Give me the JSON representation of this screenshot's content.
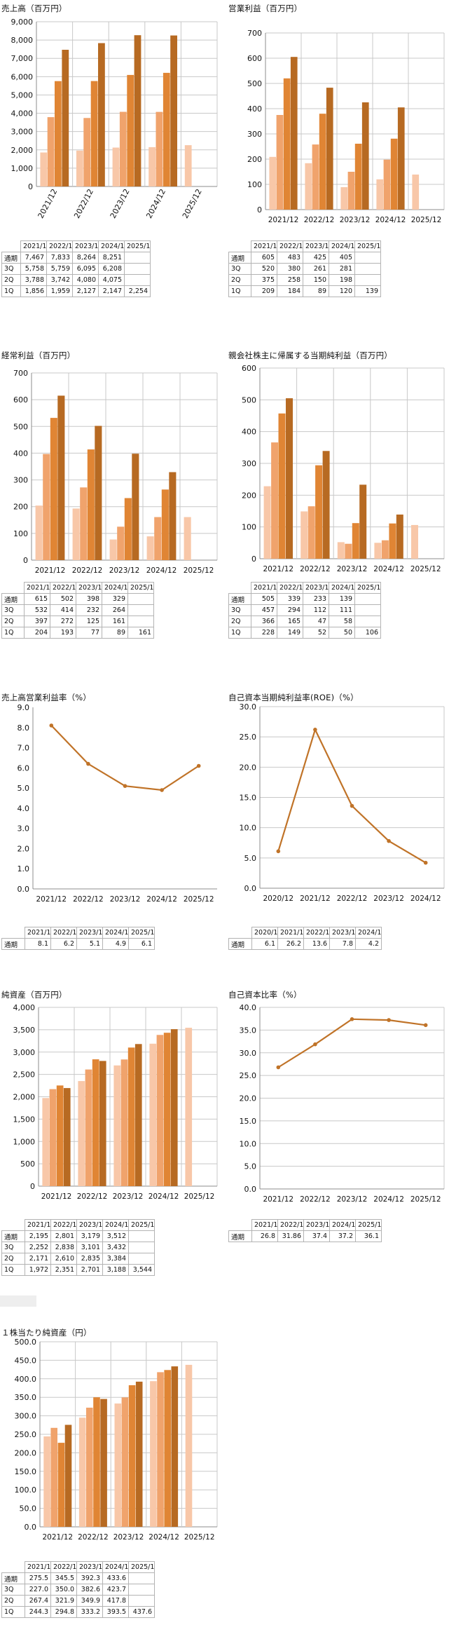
{
  "colors": {
    "q1": "#f8c7a8",
    "q2": "#f0a36c",
    "q3": "#e08534",
    "full": "#b76a22",
    "line": "#c07328",
    "grid": "#c8c8c8",
    "axis": "#8c8c8c"
  },
  "row_labels": [
    "通期",
    "3Q",
    "2Q",
    "1Q"
  ],
  "chart_data": [
    {
      "id": "sales",
      "type": "bar",
      "title": "売上高（百万円）",
      "categories": [
        "2021/12",
        "2022/12",
        "2023/12",
        "2024/12",
        "2025/12"
      ],
      "ylim": [
        0,
        9000
      ],
      "yticks": [
        "0",
        "1,000",
        "2,000",
        "3,000",
        "4,000",
        "5,000",
        "6,000",
        "7,000",
        "8,000",
        "9,000"
      ],
      "rotate_categories": true,
      "grid": true,
      "series": [
        {
          "key": "q1",
          "values": [
            1856,
            1959,
            2127,
            2147,
            2254
          ]
        },
        {
          "key": "q2",
          "values": [
            3788,
            3742,
            4080,
            4075,
            null
          ]
        },
        {
          "key": "q3",
          "values": [
            5758,
            5759,
            6095,
            6208,
            null
          ]
        },
        {
          "key": "full",
          "values": [
            7467,
            7833,
            8264,
            8251,
            null
          ]
        }
      ],
      "table": [
        [
          "7,467",
          "7,833",
          "8,264",
          "8,251",
          ""
        ],
        [
          "5,758",
          "5,759",
          "6,095",
          "6,208",
          ""
        ],
        [
          "3,788",
          "3,742",
          "4,080",
          "4,075",
          ""
        ],
        [
          "1,856",
          "1,959",
          "2,127",
          "2,147",
          "2,254"
        ]
      ]
    },
    {
      "id": "op",
      "type": "bar",
      "title": "営業利益（百万円）",
      "categories": [
        "2021/12",
        "2022/12",
        "2023/12",
        "2024/12",
        "2025/12"
      ],
      "ylim": [
        0,
        700
      ],
      "yticks": [
        "0",
        "100",
        "200",
        "300",
        "400",
        "500",
        "600",
        "700"
      ],
      "grid": true,
      "series": [
        {
          "key": "q1",
          "values": [
            209,
            184,
            89,
            120,
            139
          ]
        },
        {
          "key": "q2",
          "values": [
            375,
            258,
            150,
            198,
            null
          ]
        },
        {
          "key": "q3",
          "values": [
            520,
            380,
            261,
            281,
            null
          ]
        },
        {
          "key": "full",
          "values": [
            605,
            483,
            425,
            405,
            null
          ]
        }
      ],
      "table": [
        [
          "605",
          "483",
          "425",
          "405",
          ""
        ],
        [
          "520",
          "380",
          "261",
          "281",
          ""
        ],
        [
          "375",
          "258",
          "150",
          "198",
          ""
        ],
        [
          "209",
          "184",
          "89",
          "120",
          "139"
        ]
      ]
    },
    {
      "id": "ord",
      "type": "bar",
      "title": "経常利益（百万円）",
      "categories": [
        "2021/12",
        "2022/12",
        "2023/12",
        "2024/12",
        "2025/12"
      ],
      "ylim": [
        0,
        700
      ],
      "yticks": [
        "0",
        "100",
        "200",
        "300",
        "400",
        "500",
        "600",
        "700"
      ],
      "grid": true,
      "series": [
        {
          "key": "q1",
          "values": [
            204,
            193,
            77,
            89,
            161
          ]
        },
        {
          "key": "q2",
          "values": [
            397,
            272,
            125,
            161,
            null
          ]
        },
        {
          "key": "q3",
          "values": [
            532,
            414,
            232,
            264,
            null
          ]
        },
        {
          "key": "full",
          "values": [
            615,
            502,
            398,
            329,
            null
          ]
        }
      ],
      "table": [
        [
          "615",
          "502",
          "398",
          "329",
          ""
        ],
        [
          "532",
          "414",
          "232",
          "264",
          ""
        ],
        [
          "397",
          "272",
          "125",
          "161",
          ""
        ],
        [
          "204",
          "193",
          "77",
          "89",
          "161"
        ]
      ]
    },
    {
      "id": "net",
      "type": "bar",
      "title": "親会社株主に帰属する当期純利益（百万円）",
      "categories": [
        "2021/12",
        "2022/12",
        "2023/12",
        "2024/12",
        "2025/12"
      ],
      "ylim": [
        0,
        600
      ],
      "yticks": [
        "0",
        "100",
        "200",
        "300",
        "400",
        "500",
        "600"
      ],
      "grid": true,
      "series": [
        {
          "key": "q1",
          "values": [
            228,
            149,
            52,
            50,
            106
          ]
        },
        {
          "key": "q2",
          "values": [
            366,
            165,
            47,
            58,
            null
          ]
        },
        {
          "key": "q3",
          "values": [
            457,
            294,
            112,
            111,
            null
          ]
        },
        {
          "key": "full",
          "values": [
            505,
            339,
            233,
            139,
            null
          ]
        }
      ],
      "table": [
        [
          "505",
          "339",
          "233",
          "139",
          ""
        ],
        [
          "457",
          "294",
          "112",
          "111",
          ""
        ],
        [
          "366",
          "165",
          "47",
          "58",
          ""
        ],
        [
          "228",
          "149",
          "52",
          "50",
          "106"
        ]
      ]
    },
    {
      "id": "opm",
      "type": "line",
      "title": "売上高営業利益率（%）",
      "categories": [
        "2021/12",
        "2022/12",
        "2023/12",
        "2024/12",
        "2025/12"
      ],
      "ylim": [
        0,
        9
      ],
      "yticks": [
        "0.0",
        "1.0",
        "2.0",
        "3.0",
        "4.0",
        "5.0",
        "6.0",
        "7.0",
        "8.0",
        "9.0"
      ],
      "grid": false,
      "series": [
        {
          "key": "line",
          "values": [
            8.1,
            6.2,
            5.1,
            4.9,
            6.1
          ]
        }
      ],
      "table": [
        [
          "8.1",
          "6.2",
          "5.1",
          "4.9",
          "6.1"
        ]
      ]
    },
    {
      "id": "roe",
      "type": "line",
      "title": "自己資本当期純利益率(ROE)（%）",
      "categories": [
        "2020/12",
        "2021/12",
        "2022/12",
        "2023/12",
        "2024/12"
      ],
      "ylim": [
        0,
        30
      ],
      "yticks": [
        "0.0",
        "5.0",
        "10.0",
        "15.0",
        "20.0",
        "25.0",
        "30.0"
      ],
      "grid": true,
      "series": [
        {
          "key": "line",
          "values": [
            6.1,
            26.2,
            13.6,
            7.8,
            4.2
          ]
        }
      ],
      "table": [
        [
          "6.1",
          "26.2",
          "13.6",
          "7.8",
          "4.2"
        ]
      ]
    },
    {
      "id": "equity",
      "type": "bar",
      "title": "純資産（百万円）",
      "categories": [
        "2021/12",
        "2022/12",
        "2023/12",
        "2024/12",
        "2025/12"
      ],
      "ylim": [
        0,
        4000
      ],
      "yticks": [
        "0",
        "500",
        "1,000",
        "1,500",
        "2,000",
        "2,500",
        "3,000",
        "3,500",
        "4,000"
      ],
      "grid": true,
      "series": [
        {
          "key": "q1",
          "values": [
            1972,
            2351,
            2701,
            3188,
            3544
          ]
        },
        {
          "key": "q2",
          "values": [
            2171,
            2610,
            2835,
            3384,
            null
          ]
        },
        {
          "key": "q3",
          "values": [
            2252,
            2838,
            3101,
            3432,
            null
          ]
        },
        {
          "key": "full",
          "values": [
            2195,
            2801,
            3179,
            3512,
            null
          ]
        }
      ],
      "table": [
        [
          "2,195",
          "2,801",
          "3,179",
          "3,512",
          ""
        ],
        [
          "2,252",
          "2,838",
          "3,101",
          "3,432",
          ""
        ],
        [
          "2,171",
          "2,610",
          "2,835",
          "3,384",
          ""
        ],
        [
          "1,972",
          "2,351",
          "2,701",
          "3,188",
          "3,544"
        ]
      ]
    },
    {
      "id": "ratio",
      "type": "line",
      "title": "自己資本比率（%）",
      "categories": [
        "2021/12",
        "2022/12",
        "2023/12",
        "2024/12",
        "2025/12"
      ],
      "ylim": [
        0,
        40
      ],
      "yticks": [
        "0.0",
        "5.0",
        "10.0",
        "15.0",
        "20.0",
        "25.0",
        "30.0",
        "35.0",
        "40.0"
      ],
      "grid": true,
      "series": [
        {
          "key": "line",
          "values": [
            26.8,
            31.86,
            37.4,
            37.2,
            36.1
          ]
        }
      ],
      "table": [
        [
          "26.8",
          "31.86",
          "37.4",
          "37.2",
          "36.1"
        ]
      ]
    },
    {
      "id": "bps",
      "type": "bar",
      "title": "１株当たり純資産（円）",
      "categories": [
        "2021/12",
        "2022/12",
        "2023/12",
        "2024/12",
        "2025/12"
      ],
      "ylim": [
        0,
        500
      ],
      "yticks": [
        "0.0",
        "50.0",
        "100.0",
        "150.0",
        "200.0",
        "250.0",
        "300.0",
        "350.0",
        "400.0",
        "450.0",
        "500.0"
      ],
      "grid": true,
      "series": [
        {
          "key": "q1",
          "values": [
            244.3,
            294.8,
            333.2,
            393.5,
            437.6
          ]
        },
        {
          "key": "q2",
          "values": [
            267.4,
            321.9,
            349.9,
            417.8,
            null
          ]
        },
        {
          "key": "q3",
          "values": [
            227.0,
            350.0,
            382.6,
            423.7,
            null
          ]
        },
        {
          "key": "full",
          "values": [
            275.5,
            345.5,
            392.3,
            433.6,
            null
          ]
        }
      ],
      "table": [
        [
          "275.5",
          "345.5",
          "392.3",
          "433.6",
          ""
        ],
        [
          "227.0",
          "350.0",
          "382.6",
          "423.7",
          ""
        ],
        [
          "267.4",
          "321.9",
          "349.9",
          "417.8",
          ""
        ],
        [
          "244.3",
          "294.8",
          "333.2",
          "393.5",
          "437.6"
        ]
      ]
    }
  ]
}
